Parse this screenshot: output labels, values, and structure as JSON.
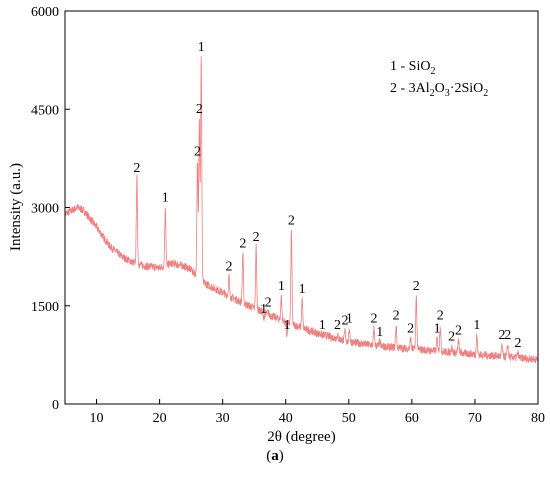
{
  "chart_data": {
    "type": "line",
    "xlabel": "2θ (degree)",
    "ylabel": "Intensity (a.u.)",
    "xlim": [
      5,
      80
    ],
    "ylim": [
      0,
      6000
    ],
    "x_ticks": [
      10,
      20,
      30,
      40,
      50,
      60,
      70,
      80
    ],
    "y_ticks": [
      0,
      1500,
      3000,
      4500,
      6000
    ],
    "grid": false,
    "legend_position": "top-right",
    "line_color": "#f08080",
    "legend": [
      {
        "marker": "1",
        "text": "1 - SiO",
        "sub": "2",
        "tail": ""
      },
      {
        "marker": "2",
        "text": "2 - 3Al",
        "sub": "2",
        "mid": "O",
        "sub2": "3",
        "tail": "·2SiO",
        "sub3": "2"
      }
    ],
    "baseline": [
      [
        5,
        2900
      ],
      [
        7,
        3000
      ],
      [
        8,
        2950
      ],
      [
        10,
        2700
      ],
      [
        12,
        2420
      ],
      [
        14,
        2250
      ],
      [
        16,
        2150
      ],
      [
        18,
        2100
      ],
      [
        20,
        2080
      ],
      [
        22,
        2150
      ],
      [
        24,
        2100
      ],
      [
        25,
        2050
      ],
      [
        27,
        1850
      ],
      [
        30,
        1700
      ],
      [
        33,
        1550
      ],
      [
        36,
        1420
      ],
      [
        40,
        1250
      ],
      [
        45,
        1080
      ],
      [
        50,
        950
      ],
      [
        55,
        880
      ],
      [
        60,
        840
      ],
      [
        65,
        800
      ],
      [
        70,
        760
      ],
      [
        75,
        720
      ],
      [
        80,
        680
      ]
    ],
    "peaks": [
      {
        "x": 16.4,
        "y": 3450,
        "label": "2"
      },
      {
        "x": 20.9,
        "y": 3000,
        "label": "1"
      },
      {
        "x": 26.0,
        "y": 3700,
        "label": "2"
      },
      {
        "x": 26.3,
        "y": 4350,
        "label": "2"
      },
      {
        "x": 26.6,
        "y": 5300,
        "label": "1"
      },
      {
        "x": 31.0,
        "y": 1950,
        "label": "2"
      },
      {
        "x": 33.2,
        "y": 2300,
        "label": "2"
      },
      {
        "x": 35.3,
        "y": 2400,
        "label": "2"
      },
      {
        "x": 36.5,
        "y": 1300,
        "label": "1"
      },
      {
        "x": 37.2,
        "y": 1400,
        "label": "2"
      },
      {
        "x": 39.3,
        "y": 1650,
        "label": "1"
      },
      {
        "x": 40.2,
        "y": 1050,
        "label": "1"
      },
      {
        "x": 40.9,
        "y": 2650,
        "label": "2"
      },
      {
        "x": 42.6,
        "y": 1600,
        "label": "1"
      },
      {
        "x": 45.8,
        "y": 1050,
        "label": "1"
      },
      {
        "x": 48.2,
        "y": 1050,
        "label": "2"
      },
      {
        "x": 49.4,
        "y": 1120,
        "label": "2"
      },
      {
        "x": 50.1,
        "y": 1150,
        "label": "1"
      },
      {
        "x": 54.0,
        "y": 1150,
        "label": "2"
      },
      {
        "x": 54.9,
        "y": 950,
        "label": "1"
      },
      {
        "x": 57.5,
        "y": 1200,
        "label": "2"
      },
      {
        "x": 59.8,
        "y": 1000,
        "label": "2"
      },
      {
        "x": 60.7,
        "y": 1650,
        "label": "2"
      },
      {
        "x": 64.0,
        "y": 1000,
        "label": "1"
      },
      {
        "x": 64.5,
        "y": 1200,
        "label": "2"
      },
      {
        "x": 66.3,
        "y": 880,
        "label": "2"
      },
      {
        "x": 67.4,
        "y": 970,
        "label": "2"
      },
      {
        "x": 70.3,
        "y": 1050,
        "label": "1"
      },
      {
        "x": 74.3,
        "y": 900,
        "label": "2"
      },
      {
        "x": 75.2,
        "y": 900,
        "label": "2"
      },
      {
        "x": 76.8,
        "y": 780,
        "label": "2"
      }
    ]
  },
  "caption": {
    "open": "(",
    "letter": "a",
    "close": ")"
  }
}
